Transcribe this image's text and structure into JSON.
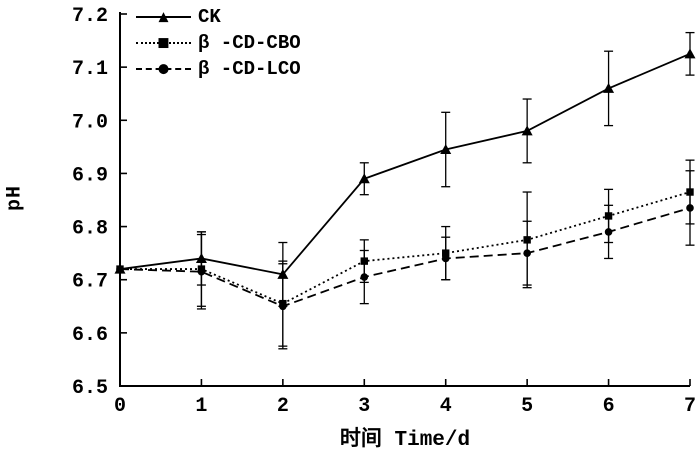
{
  "chart_data": {
    "type": "line",
    "title": "",
    "xlabel": "时间 Time/d",
    "ylabel": "pH",
    "xlim": [
      0,
      7
    ],
    "ylim": [
      6.5,
      7.2
    ],
    "x": [
      0,
      1,
      2,
      3,
      4,
      5,
      6,
      7
    ],
    "x_ticks": [
      "0",
      "1",
      "2",
      "3",
      "4",
      "5",
      "6",
      "7"
    ],
    "y_ticks": [
      "6.5",
      "6.6",
      "6.7",
      "6.8",
      "6.9",
      "7.0",
      "7.1",
      "7.2"
    ],
    "grid": false,
    "legend_position": "top-left-inside",
    "series": [
      {
        "name": "CK",
        "marker": "triangle",
        "line": "solid",
        "values": [
          6.72,
          6.74,
          6.71,
          6.89,
          6.945,
          6.98,
          7.06,
          7.125
        ],
        "errors": [
          0,
          0.05,
          0.06,
          0.03,
          0.07,
          0.06,
          0.07,
          0.04
        ]
      },
      {
        "name": "β -CD-CBO",
        "marker": "square",
        "line": "dotted",
        "values": [
          6.72,
          6.72,
          6.655,
          6.735,
          6.75,
          6.775,
          6.82,
          6.865
        ],
        "errors": [
          0,
          0.07,
          0.08,
          0.04,
          0.05,
          0.09,
          0.05,
          0.06
        ]
      },
      {
        "name": "β -CD-LCO",
        "marker": "circle",
        "line": "dashed",
        "values": [
          6.72,
          6.715,
          6.65,
          6.705,
          6.74,
          6.75,
          6.79,
          6.835
        ],
        "errors": [
          0,
          0.07,
          0.08,
          0.05,
          0.04,
          0.06,
          0.05,
          0.07
        ]
      }
    ]
  }
}
